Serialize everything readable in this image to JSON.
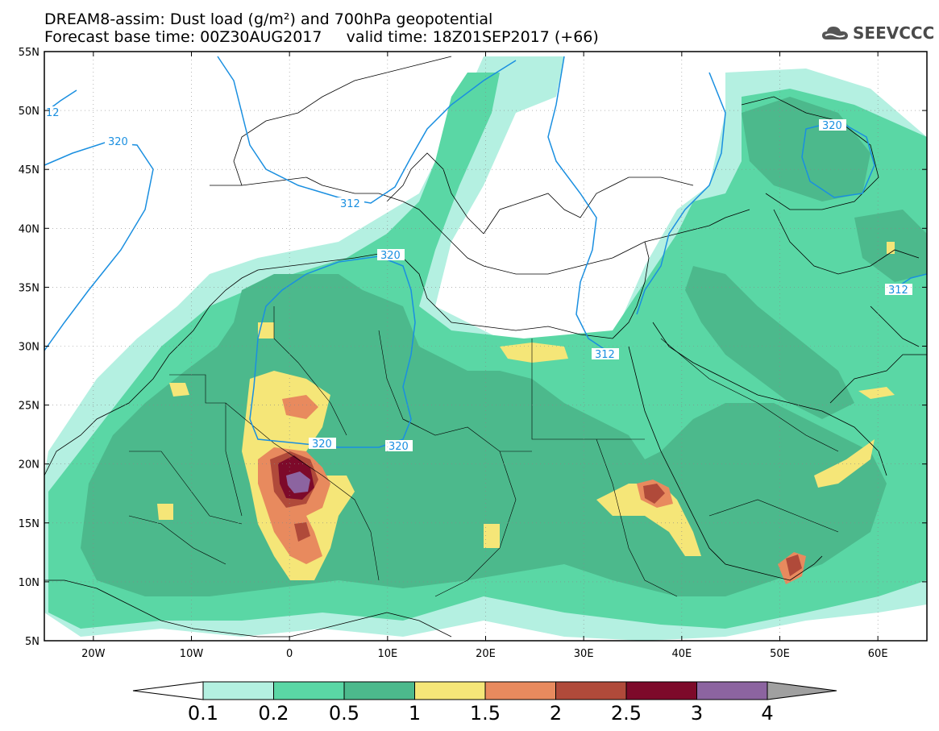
{
  "title": {
    "line1": "DREAM8-assim: Dust load (g/m²) and 700hPa geopotential",
    "line2": "Forecast base time: 00Z30AUG2017     valid time: 18Z01SEP2017 (+66)"
  },
  "logo": {
    "text": "SEEVCCC",
    "icon": "cloud-icon"
  },
  "axes": {
    "x_ticks": [
      "20W",
      "10W",
      "0",
      "10E",
      "20E",
      "30E",
      "40E",
      "50E",
      "60E"
    ],
    "y_ticks": [
      "55N",
      "50N",
      "45N",
      "40N",
      "35N",
      "30N",
      "25N",
      "20N",
      "15N",
      "10N",
      "5N"
    ],
    "lon_range": [
      -25,
      65
    ],
    "lat_range": [
      5,
      55
    ]
  },
  "contour_labels": [
    "12",
    "320",
    "312",
    "320",
    "320",
    "320",
    "320",
    "312",
    "312"
  ],
  "colorbar": {
    "labels": [
      "0.1",
      "0.2",
      "0.5",
      "1",
      "1.5",
      "2",
      "2.5",
      "3",
      "4"
    ],
    "colors": [
      "#ffffff",
      "#b4f0e1",
      "#5ad7a5",
      "#4cb98c",
      "#f5e678",
      "#e88a5e",
      "#b04a3a",
      "#7d0a2a",
      "#8c64a0",
      "#a0a0a0"
    ]
  },
  "colors": {
    "land_border": "#000000",
    "geopotential": "#1a8fe0"
  }
}
